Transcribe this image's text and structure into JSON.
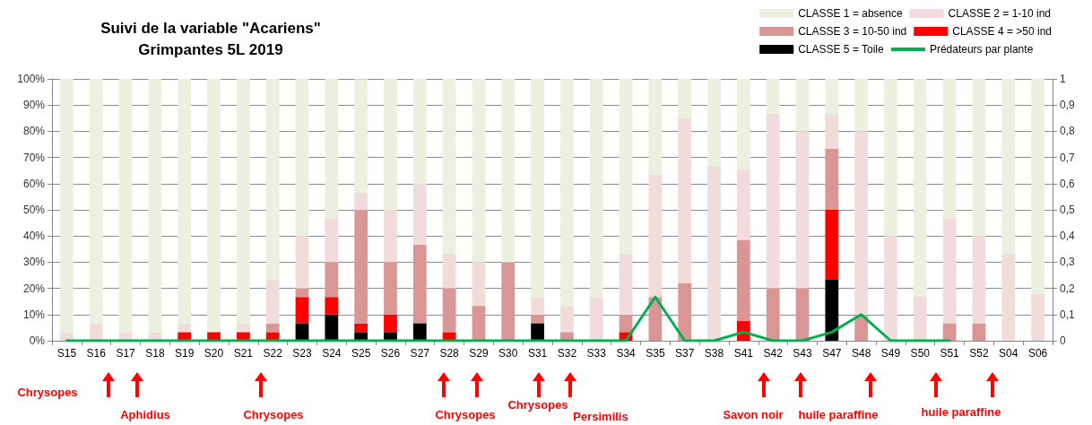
{
  "chart_data": {
    "type": "bar",
    "title": "Suivi de la variable \"Acariens\"",
    "subtitle": "Grimpantes 5L 2019",
    "categories": [
      "S15",
      "S16",
      "S17",
      "S18",
      "S19",
      "S20",
      "S21",
      "S22",
      "S23",
      "S24",
      "S25",
      "S26",
      "S27",
      "S28",
      "S29",
      "S30",
      "S31",
      "S32",
      "S33",
      "S34",
      "S35",
      "S37",
      "S38",
      "S41",
      "S42",
      "S43",
      "S47",
      "S48",
      "S49",
      "S50",
      "S51",
      "S52",
      "S04",
      "S06"
    ],
    "stacked": true,
    "series": [
      {
        "name": "CLASSE 5 = Toile",
        "color": "#000000",
        "values": [
          0,
          0,
          0,
          0,
          0,
          0,
          0,
          0,
          6.7,
          10,
          3.3,
          3.3,
          6.7,
          0,
          0,
          0,
          6.7,
          0,
          0,
          0,
          0,
          0,
          0,
          0,
          0,
          0,
          23.3,
          0,
          0,
          0,
          0,
          0,
          0,
          0
        ]
      },
      {
        "name": "CLASSE 4 = >50 ind",
        "color": "#ff0000",
        "values": [
          0,
          0,
          0,
          0,
          3.3,
          3.3,
          3.3,
          3.3,
          10,
          6.7,
          3.3,
          6.7,
          0,
          3.3,
          0,
          0,
          0,
          0,
          0,
          3.3,
          0,
          0,
          0,
          7.5,
          0,
          0,
          26.7,
          0,
          0,
          0,
          0,
          0,
          0,
          0
        ]
      },
      {
        "name": "CLASSE 3 = 10-50 ind",
        "color": "#da9694",
        "values": [
          0,
          0,
          0,
          0,
          0,
          0,
          0,
          3.3,
          3.3,
          13.3,
          43.3,
          20,
          30,
          16.7,
          13.3,
          30,
          3.3,
          3.3,
          0,
          6.7,
          16.7,
          22,
          0,
          31,
          20,
          20,
          23.3,
          10,
          0,
          0,
          6.7,
          6.7,
          0,
          0
        ]
      },
      {
        "name": "CLASSE 2 = 1-10 ind",
        "color": "#f2dcdb",
        "values": [
          3.3,
          6.7,
          3.3,
          3.3,
          3.3,
          0,
          3.3,
          16.7,
          20,
          16.7,
          6.7,
          20,
          23.3,
          13.3,
          16.7,
          0,
          6.7,
          10,
          16.7,
          23.3,
          46.7,
          63,
          66.7,
          27,
          66.7,
          60,
          13.4,
          70,
          40,
          16.7,
          40,
          33.3,
          33.3,
          18
        ]
      },
      {
        "name": "CLASSE 1 = absence",
        "color": "#ebf1de",
        "values": [
          96.7,
          93.3,
          96.7,
          96.7,
          93.4,
          96.7,
          93.4,
          76.7,
          60,
          53.3,
          43.3,
          50,
          40,
          66.7,
          70,
          70,
          83.3,
          86.7,
          83.3,
          66.7,
          36.7,
          15,
          33.3,
          34.5,
          13.3,
          20,
          13.3,
          20,
          60,
          83.3,
          53.3,
          60,
          66.7,
          82
        ]
      },
      {
        "name": "Prédateurs par plante",
        "type": "line",
        "axis": "y2",
        "color": "#00b050",
        "values": [
          0,
          0,
          0,
          0,
          0,
          0,
          0,
          0,
          0,
          0,
          0,
          0,
          0,
          0,
          0,
          0,
          0,
          0,
          0,
          0,
          0.167,
          0,
          0,
          0.033,
          0,
          0,
          0.033,
          0.1,
          0,
          0,
          0,
          null,
          null,
          null
        ]
      }
    ],
    "ylim": [
      0,
      100
    ],
    "yticks": [
      {
        "value": 0,
        "label": "0%"
      },
      {
        "value": 10,
        "label": "10%"
      },
      {
        "value": 20,
        "label": "20%"
      },
      {
        "value": 30,
        "label": "30%"
      },
      {
        "value": 40,
        "label": "40%"
      },
      {
        "value": 50,
        "label": "50%"
      },
      {
        "value": 60,
        "label": "60%"
      },
      {
        "value": 70,
        "label": "70%"
      },
      {
        "value": 80,
        "label": "80%"
      },
      {
        "value": 90,
        "label": "90%"
      },
      {
        "value": 100,
        "label": "100%"
      }
    ],
    "y2lim": [
      0,
      1
    ],
    "y2ticks": [
      0,
      {
        "value": 0.1,
        "label": "0,1"
      },
      {
        "value": 0.2,
        "label": "0,2"
      },
      {
        "value": 0.3,
        "label": "0,3"
      },
      {
        "value": 0.4,
        "label": "0,4"
      },
      {
        "value": 0.5,
        "label": "0,5"
      },
      {
        "value": 0.6,
        "label": "0,6"
      },
      {
        "value": 0.7,
        "label": "0,7"
      },
      {
        "value": 0.8,
        "label": "0,8"
      },
      {
        "value": 0.9,
        "label": "0,9"
      },
      1
    ],
    "grid": "y",
    "legend": "top right",
    "marker": "none",
    "line_style": "solid",
    "annotations": [
      "Chrysopes",
      "Aphidius",
      "Chrysopes",
      "Chrysopes",
      "Chrysopes",
      "Persimilis",
      "Savon noir",
      "huile paraffine",
      "huile paraffine"
    ]
  }
}
